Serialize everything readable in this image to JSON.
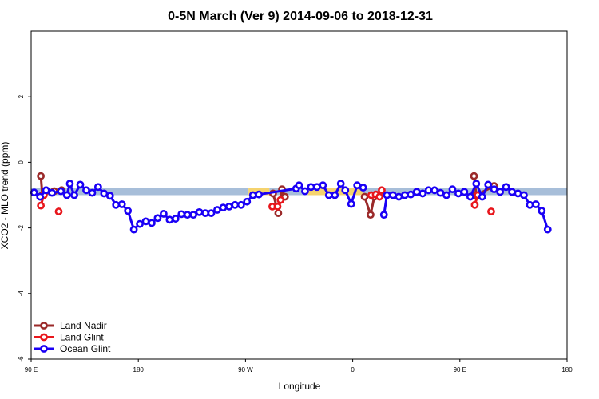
{
  "chart_data": {
    "type": "line",
    "title": "0-5N March (Ver 9)   2014-09-06 to 2018-12-31",
    "xlabel": "Longitude",
    "ylabel": "XCO2 - MLO trend (ppm)",
    "xlim": [
      60,
      420
    ],
    "ylim": [
      -6,
      4
    ],
    "x_ticks": [
      {
        "value": 60,
        "label": "90 E"
      },
      {
        "value": 132,
        "label": "180"
      },
      {
        "value": 204,
        "label": "90 W"
      },
      {
        "value": 276,
        "label": "0"
      },
      {
        "value": 348,
        "label": "90 E"
      },
      {
        "value": 420,
        "label": "180"
      }
    ],
    "y_ticks": [
      {
        "value": -6,
        "label": "-6"
      },
      {
        "value": -4,
        "label": "-4"
      },
      {
        "value": -2,
        "label": "-2"
      },
      {
        "value": 0,
        "label": "0"
      },
      {
        "value": 2,
        "label": "2"
      }
    ],
    "bands": [
      {
        "color": "#a7bed9",
        "segments": [
          [
            60,
            206
          ],
          [
            220,
            246
          ],
          [
            283,
            420
          ]
        ],
        "ylim": [
          -1.0,
          -0.78
        ]
      },
      {
        "color": "#f5d36e",
        "segments": [
          [
            206,
            220
          ],
          [
            246,
            283
          ]
        ],
        "ylim": [
          -1.0,
          -0.78
        ]
      }
    ],
    "legend_position": "bottom-left",
    "series": [
      {
        "name": "Land Nadir",
        "color": "#9b2a2a",
        "segments": [
          [
            [
              66.5,
              -0.42
            ],
            [
              67.5,
              -1.0
            ],
            [
              75.5,
              -0.88
            ],
            [
              80.5,
              -0.85
            ]
          ],
          [
            [
              222.5,
              -0.95
            ],
            [
              226,
              -1.55
            ],
            [
              228.5,
              -0.82
            ],
            [
              230.5,
              -1.05
            ]
          ],
          [
            [
              284,
              -1.05
            ],
            [
              288,
              -1.6
            ],
            [
              290.5,
              -1.05
            ]
          ],
          [
            [
              357.5,
              -0.42
            ],
            [
              359,
              -1.0
            ],
            [
              371,
              -0.72
            ]
          ]
        ]
      },
      {
        "name": "Land Glint",
        "color": "#e8161c",
        "segments": [
          [
            [
              66.5,
              -1.32
            ],
            [
              68.5,
              -1.0
            ]
          ],
          [
            [
              78.5,
              -1.5
            ]
          ],
          [
            [
              222,
              -1.35
            ],
            [
              225.5,
              -1.35
            ],
            [
              227.5,
              -1.15
            ]
          ],
          [
            [
              288.5,
              -1.0
            ],
            [
              291.5,
              -0.98
            ],
            [
              294,
              -1.05
            ],
            [
              295.5,
              -0.85
            ]
          ],
          [
            [
              358,
              -1.3
            ],
            [
              360,
              -1.0
            ]
          ],
          [
            [
              369,
              -1.5
            ]
          ]
        ]
      },
      {
        "name": "Ocean Glint",
        "color": "#1a00f5",
        "segments": [
          [
            [
              62,
              -0.92
            ],
            [
              66,
              -1.05
            ],
            [
              70,
              -0.85
            ],
            [
              74,
              -0.93
            ],
            [
              80,
              -0.88
            ],
            [
              84,
              -1.0
            ],
            [
              86,
              -0.65
            ],
            [
              89,
              -1.0
            ],
            [
              93,
              -0.68
            ],
            [
              97,
              -0.85
            ],
            [
              101,
              -0.93
            ],
            [
              105,
              -0.75
            ],
            [
              109,
              -0.95
            ],
            [
              113,
              -1.02
            ],
            [
              117,
              -1.3
            ],
            [
              121,
              -1.28
            ],
            [
              125,
              -1.48
            ],
            [
              129,
              -2.05
            ],
            [
              133,
              -1.88
            ],
            [
              137,
              -1.8
            ],
            [
              141,
              -1.85
            ],
            [
              145,
              -1.7
            ],
            [
              149,
              -1.57
            ],
            [
              153,
              -1.75
            ],
            [
              157,
              -1.72
            ],
            [
              161,
              -1.58
            ],
            [
              165,
              -1.6
            ],
            [
              169,
              -1.6
            ],
            [
              173,
              -1.52
            ],
            [
              177,
              -1.55
            ],
            [
              181,
              -1.55
            ],
            [
              185,
              -1.45
            ],
            [
              189,
              -1.38
            ],
            [
              193,
              -1.35
            ],
            [
              197,
              -1.3
            ],
            [
              201,
              -1.3
            ],
            [
              205,
              -1.2
            ],
            [
              209,
              -1.0
            ],
            [
              213,
              -0.98
            ],
            [
              238,
              -0.8
            ],
            [
              240,
              -0.7
            ],
            [
              244,
              -0.88
            ],
            [
              248,
              -0.75
            ],
            [
              252,
              -0.75
            ],
            [
              256,
              -0.7
            ],
            [
              260,
              -1.0
            ],
            [
              264,
              -1.0
            ],
            [
              268,
              -0.65
            ],
            [
              271,
              -0.85
            ],
            [
              275,
              -1.27
            ],
            [
              279,
              -0.7
            ],
            [
              283,
              -0.77
            ]
          ],
          [
            [
              297,
              -1.6
            ],
            [
              299,
              -1.0
            ],
            [
              303,
              -1.0
            ],
            [
              307,
              -1.05
            ],
            [
              311,
              -1.0
            ],
            [
              315,
              -0.98
            ],
            [
              319,
              -0.9
            ],
            [
              323,
              -0.95
            ],
            [
              327,
              -0.85
            ],
            [
              331,
              -0.85
            ],
            [
              335,
              -0.93
            ],
            [
              339,
              -1.0
            ],
            [
              343,
              -0.82
            ],
            [
              347,
              -0.95
            ],
            [
              351,
              -0.9
            ],
            [
              355,
              -1.05
            ],
            [
              359,
              -0.65
            ],
            [
              363,
              -1.05
            ],
            [
              367,
              -0.68
            ],
            [
              371,
              -0.82
            ],
            [
              375,
              -0.9
            ],
            [
              379,
              -0.75
            ],
            [
              383,
              -0.9
            ],
            [
              387,
              -0.95
            ],
            [
              391,
              -1.0
            ],
            [
              395,
              -1.3
            ],
            [
              399,
              -1.28
            ],
            [
              403,
              -1.48
            ],
            [
              407,
              -2.05
            ]
          ]
        ]
      }
    ]
  }
}
